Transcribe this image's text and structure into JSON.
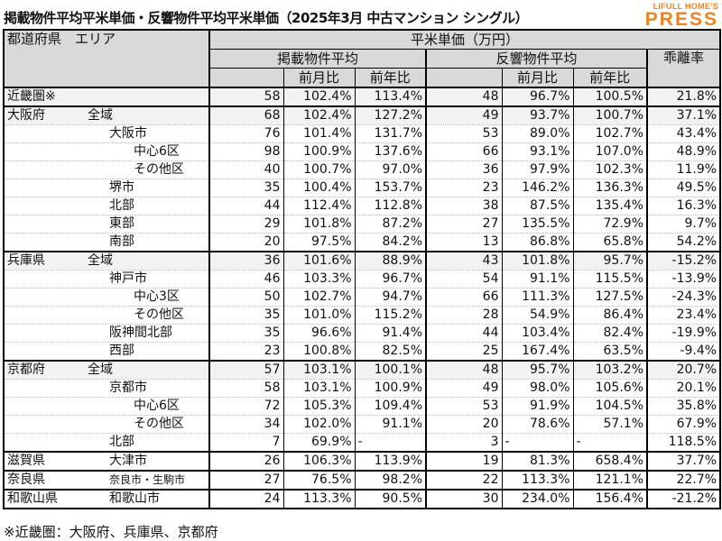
{
  "title": "掲載物件平均平米単価・反響物件平均平米単価（2025年3月 中古マンション シングル）",
  "logo": {
    "line1": "LIFULL HOME'S",
    "line2": "PRESS",
    "color": "#f0831e"
  },
  "header": {
    "area": "都道府県　エリア",
    "unit": "平米単価（万円）",
    "listed": "掲載物件平均",
    "inquiry": "反響物件平均",
    "gap": "乖離率",
    "mom": "前月比",
    "yoy": "前年比"
  },
  "rows": [
    {
      "pref": "近畿圏※",
      "sub": "",
      "level": 0,
      "v": [
        "58",
        "102.4%",
        "113.4%",
        "48",
        "96.7%",
        "100.5%",
        "21.8%"
      ]
    },
    {
      "pref": "大阪府",
      "sub": "全域",
      "level": 0,
      "v": [
        "68",
        "102.4%",
        "127.2%",
        "49",
        "93.7%",
        "100.7%",
        "37.1%"
      ]
    },
    {
      "pref": "",
      "sub": "大阪市",
      "level": 1,
      "v": [
        "76",
        "101.4%",
        "131.7%",
        "53",
        "89.0%",
        "102.7%",
        "43.4%"
      ]
    },
    {
      "pref": "",
      "sub": "中心6区",
      "level": 2,
      "v": [
        "98",
        "100.9%",
        "137.6%",
        "66",
        "93.1%",
        "107.0%",
        "48.9%"
      ]
    },
    {
      "pref": "",
      "sub": "その他区",
      "level": 2,
      "v": [
        "40",
        "100.7%",
        "97.0%",
        "36",
        "97.9%",
        "102.3%",
        "11.9%"
      ]
    },
    {
      "pref": "",
      "sub": "堺市",
      "level": 1,
      "v": [
        "35",
        "100.4%",
        "153.7%",
        "23",
        "146.2%",
        "136.3%",
        "49.5%"
      ]
    },
    {
      "pref": "",
      "sub": "北部",
      "level": 1,
      "v": [
        "44",
        "112.4%",
        "112.8%",
        "38",
        "87.5%",
        "135.4%",
        "16.3%"
      ]
    },
    {
      "pref": "",
      "sub": "東部",
      "level": 1,
      "v": [
        "29",
        "101.8%",
        "87.2%",
        "27",
        "135.5%",
        "72.9%",
        "9.7%"
      ]
    },
    {
      "pref": "",
      "sub": "南部",
      "level": 1,
      "v": [
        "20",
        "97.5%",
        "84.2%",
        "13",
        "86.8%",
        "65.8%",
        "54.2%"
      ]
    },
    {
      "pref": "兵庫県",
      "sub": "全域",
      "level": 0,
      "v": [
        "36",
        "101.6%",
        "88.9%",
        "43",
        "101.8%",
        "95.7%",
        "-15.2%"
      ]
    },
    {
      "pref": "",
      "sub": "神戸市",
      "level": 1,
      "v": [
        "46",
        "103.3%",
        "96.7%",
        "54",
        "91.1%",
        "115.5%",
        "-13.9%"
      ]
    },
    {
      "pref": "",
      "sub": "中心3区",
      "level": 2,
      "v": [
        "50",
        "102.7%",
        "94.7%",
        "66",
        "111.3%",
        "127.5%",
        "-24.3%"
      ]
    },
    {
      "pref": "",
      "sub": "その他区",
      "level": 2,
      "v": [
        "35",
        "101.0%",
        "115.2%",
        "28",
        "54.9%",
        "86.4%",
        "23.4%"
      ]
    },
    {
      "pref": "",
      "sub": "阪神間北部",
      "level": 1,
      "v": [
        "35",
        "96.6%",
        "91.4%",
        "44",
        "103.4%",
        "82.4%",
        "-19.9%"
      ]
    },
    {
      "pref": "",
      "sub": "西部",
      "level": 1,
      "v": [
        "23",
        "100.8%",
        "82.5%",
        "25",
        "167.4%",
        "63.5%",
        "-9.4%"
      ]
    },
    {
      "pref": "京都府",
      "sub": "全域",
      "level": 0,
      "v": [
        "57",
        "103.1%",
        "100.1%",
        "48",
        "95.7%",
        "103.2%",
        "20.7%"
      ]
    },
    {
      "pref": "",
      "sub": "京都市",
      "level": 1,
      "v": [
        "58",
        "103.1%",
        "100.9%",
        "49",
        "98.0%",
        "105.6%",
        "20.1%"
      ]
    },
    {
      "pref": "",
      "sub": "中心6区",
      "level": 2,
      "v": [
        "72",
        "105.3%",
        "109.4%",
        "53",
        "91.9%",
        "104.5%",
        "35.8%"
      ]
    },
    {
      "pref": "",
      "sub": "その他区",
      "level": 2,
      "v": [
        "34",
        "102.0%",
        "91.1%",
        "20",
        "78.6%",
        "57.1%",
        "67.9%"
      ]
    },
    {
      "pref": "",
      "sub": "北部",
      "level": 1,
      "v": [
        "7",
        "69.9%",
        "-",
        "3",
        "-",
        "-",
        "118.5%"
      ]
    },
    {
      "pref": "滋賀県",
      "sub": "大津市",
      "level": 1,
      "v": [
        "26",
        "106.3%",
        "113.9%",
        "19",
        "81.3%",
        "658.4%",
        "37.7%"
      ]
    },
    {
      "pref": "奈良県",
      "sub": "奈良市・生駒市",
      "level": 1,
      "v": [
        "27",
        "76.5%",
        "98.2%",
        "22",
        "113.3%",
        "121.1%",
        "22.7%"
      ]
    },
    {
      "pref": "和歌山県",
      "sub": "和歌山市",
      "level": 1,
      "v": [
        "24",
        "113.3%",
        "90.5%",
        "30",
        "234.0%",
        "156.4%",
        "-21.2%"
      ]
    }
  ],
  "footnote": "※近畿圏：大阪府、兵庫県、京都府"
}
